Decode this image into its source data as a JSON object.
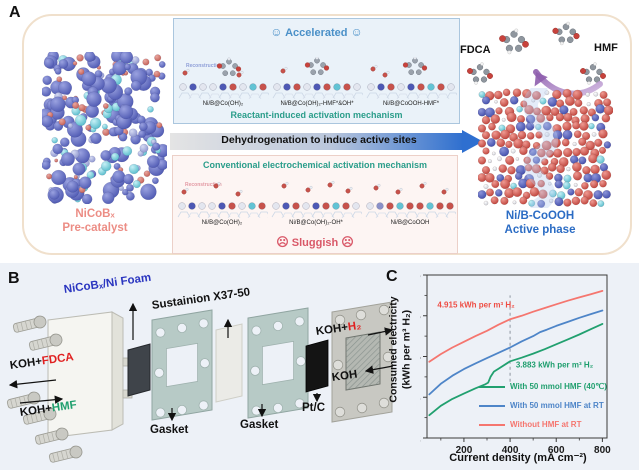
{
  "panelA": {
    "label": "A",
    "pre_catalyst_line1": "NiCoBₓ",
    "pre_catalyst_line2": "Pre-catalyst",
    "accelerated": {
      "face": "☺",
      "label": "Accelerated"
    },
    "top_box": {
      "reconstruction": "Reconstruction",
      "structures": [
        "Ni/B@Co(OH)₂",
        "Ni/B@Co(OH)₂-HMF*&OH*",
        "Ni/B@CoOOH-HMF*"
      ],
      "mechanism": "Reactant-induced activation mechanism"
    },
    "arrow_label": "Dehydrogenation to induce active sites",
    "bottom_box": {
      "mechanism": "Conventional electrochemical activation mechanism",
      "reconstruction": "Reconstruction",
      "structures": [
        "Ni/B@Co(OH)₂",
        "Ni/B@Co(OH)₂-OH*",
        "Ni/B@CoOOH"
      ]
    },
    "sluggish": {
      "face": "☹",
      "label": "Sluggish"
    },
    "fdca_label": "FDCA",
    "hmf_label": "HMF",
    "active_phase_line1": "Ni/B-CoOOH",
    "active_phase_line2": "Active phase"
  },
  "panelB": {
    "label": "B",
    "electrode_label": "NiCoBₓ/Ni Foam",
    "membrane_label": "Sustainion X37-50",
    "koh_fdca": {
      "prefix": "KOH+",
      "species": "FDCA"
    },
    "koh_hmf": {
      "prefix": "KOH+",
      "species": "HMF"
    },
    "gasket_left": "Gasket",
    "gasket_right": "Gasket",
    "ptc_label": "Pt/C",
    "koh_h2": {
      "prefix": "KOH+",
      "species": "H₂"
    },
    "koh_label": "KOH"
  },
  "panelC": {
    "label": "C",
    "ylabel_line1": "Consumed electricity",
    "ylabel_line2": "(kWh per m³ H₂)"
  },
  "colors": {
    "accelerated_blue": "#4a90c8",
    "sluggish_red": "#d95868",
    "mechanism_teal": "#2a9d8a",
    "precatalyst_salmon": "#ec8d85",
    "active_phase_blue": "#2b6cc4",
    "electrode_label_blue": "#2a35c0",
    "fdca_red": "#e02020",
    "hmf_green": "#1fa06e",
    "panel_background_blue": "#edf1f7"
  },
  "chart_data": {
    "type": "line",
    "title": "",
    "xlabel": "Current density (mA cm⁻²)",
    "ylabel": "Consumed electricity (kWh per m³ H₂)",
    "xlim": [
      40,
      820
    ],
    "ylim": [
      2,
      6
    ],
    "xticks": [
      200,
      400,
      600,
      800
    ],
    "xminorticks": [
      100,
      300,
      500,
      700
    ],
    "yticks": [
      2,
      3,
      4,
      5,
      6
    ],
    "yminorticks": [
      2.5,
      3.5,
      4.5,
      5.5
    ],
    "grid": false,
    "legend_position": "lower right",
    "dashed_guide": {
      "x": 400,
      "y_from": 3.38,
      "y_to": 5.5
    },
    "annotations": [
      {
        "text": "4.915 kWh per m³ H₂",
        "color": "#ee4d44",
        "x": 85,
        "y": 5.2,
        "anchor": "start"
      },
      {
        "text": "3.883 kWh per m³ H₂",
        "color": "#1d9e6d",
        "x": 425,
        "y": 3.73,
        "anchor": "start"
      }
    ],
    "series": [
      {
        "name": "With 50 mmol HMF (40℃)",
        "color": "#21a06f",
        "x": [
          50,
          100,
          150,
          200,
          250,
          290,
          305,
          315,
          330,
          350,
          400,
          450,
          500,
          550,
          600,
          650,
          700,
          750,
          800
        ],
        "y": [
          2.56,
          2.79,
          2.96,
          3.09,
          3.22,
          3.31,
          3.36,
          3.5,
          3.63,
          3.7,
          3.883,
          3.97,
          4.07,
          4.18,
          4.3,
          4.42,
          4.54,
          4.67,
          4.8
        ]
      },
      {
        "name": "With 50 mmol HMF at RT",
        "color": "#4e85c8",
        "x": [
          50,
          100,
          150,
          200,
          250,
          300,
          350,
          400,
          450,
          500,
          530,
          560,
          600,
          650,
          700,
          750,
          800
        ],
        "y": [
          3.07,
          3.33,
          3.53,
          3.69,
          3.83,
          3.96,
          4.09,
          4.22,
          4.37,
          4.5,
          4.6,
          4.66,
          4.75,
          4.85,
          4.95,
          5.04,
          5.13
        ]
      },
      {
        "name": "Without HMF at RT",
        "color": "#f5766f",
        "x": [
          50,
          100,
          150,
          200,
          250,
          300,
          350,
          400,
          450,
          500,
          550,
          600,
          650,
          700,
          750,
          800
        ],
        "y": [
          3.87,
          4.06,
          4.22,
          4.36,
          4.5,
          4.63,
          4.78,
          4.915,
          5.0,
          5.1,
          5.19,
          5.28,
          5.37,
          5.45,
          5.53,
          5.61
        ]
      }
    ]
  }
}
